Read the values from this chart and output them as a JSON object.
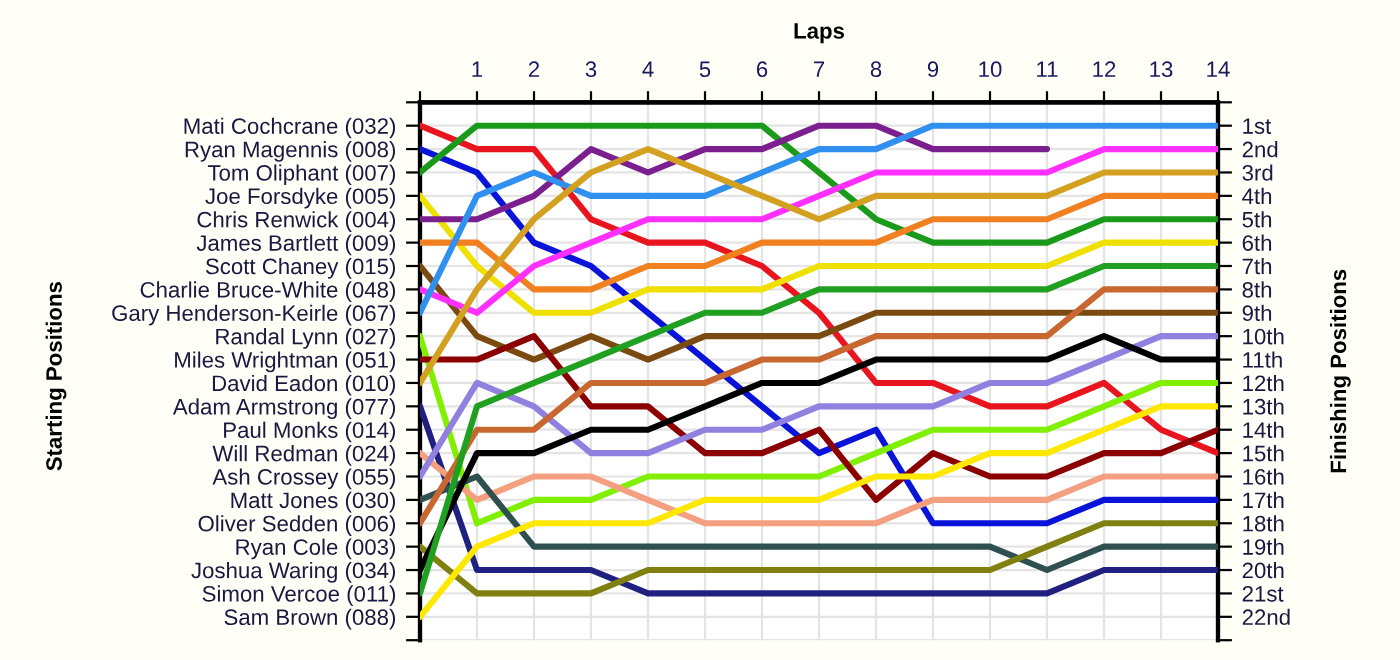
{
  "chart_data": {
    "type": "line",
    "xlabel": "Laps",
    "annotations": [
      "Starting Positions"
    ],
    "y2label": "Finishing Positions",
    "x": [
      0,
      1,
      2,
      3,
      4,
      5,
      6,
      7,
      8,
      9,
      10,
      11,
      12,
      13,
      14
    ],
    "xlim": [
      0,
      14
    ],
    "xticks": [
      {
        "value": 0,
        "label": null
      },
      1,
      2,
      3,
      4,
      5,
      6,
      7,
      8,
      9,
      10,
      11,
      12,
      13,
      14
    ],
    "y_categories": [
      "Mati Cochcrane (032)",
      "Ryan Magennis (008)",
      "Tom Oliphant (007)",
      "Joe Forsdyke (005)",
      "Chris Renwick (004)",
      "James Bartlett (009)",
      "Scott Chaney (015)",
      "Charlie Bruce-White (048)",
      "Gary Henderson-Keirle (067)",
      "Randal Lynn (027)",
      "Miles Wrightman (051)",
      "David Eadon (010)",
      "Adam Armstrong (077)",
      "Paul Monks (014)",
      "Will Redman (024)",
      "Ash Crossey (055)",
      "Matt Jones (030)",
      "Oliver Sedden (006)",
      "Ryan Cole (003)",
      "Joshua Waring (034)",
      "Simon Vercoe (011)",
      "Sam Brown (088)"
    ],
    "y2lim": [
      23,
      0
    ],
    "y2ticks": [
      {
        "value": 0,
        "label": null
      },
      {
        "value": 1,
        "label": "1st"
      },
      {
        "value": 2,
        "label": "2nd"
      },
      {
        "value": 3,
        "label": "3rd"
      },
      {
        "value": 4,
        "label": "4th"
      },
      {
        "value": 5,
        "label": "5th"
      },
      {
        "value": 6,
        "label": "6th"
      },
      {
        "value": 7,
        "label": "7th"
      },
      {
        "value": 8,
        "label": "8th"
      },
      {
        "value": 9,
        "label": "9th"
      },
      {
        "value": 10,
        "label": "10th"
      },
      {
        "value": 11,
        "label": "11th"
      },
      {
        "value": 12,
        "label": "12th"
      },
      {
        "value": 13,
        "label": "13th"
      },
      {
        "value": 14,
        "label": "14th"
      },
      {
        "value": 15,
        "label": "15th"
      },
      {
        "value": 16,
        "label": "16th"
      },
      {
        "value": 17,
        "label": "17th"
      },
      {
        "value": 18,
        "label": "18th"
      },
      {
        "value": 19,
        "label": "19th"
      },
      {
        "value": 20,
        "label": "20th"
      },
      {
        "value": 21,
        "label": "21st"
      },
      {
        "value": 22,
        "label": "22nd"
      },
      {
        "value": 23,
        "label": null
      }
    ],
    "grid": true,
    "line_style": "solid",
    "series": [
      {
        "axis": "y2",
        "color": "#e8141e",
        "values": [
          1,
          2,
          2,
          5,
          6,
          6,
          7,
          9,
          12,
          12,
          13,
          13,
          12,
          14,
          15
        ]
      },
      {
        "axis": "y2",
        "color": "#0a14d8",
        "values": [
          2,
          3,
          6,
          7,
          9,
          11,
          13,
          15,
          14,
          18,
          18,
          18,
          17,
          17,
          17
        ]
      },
      {
        "axis": "y2",
        "color": "#1a9a1a",
        "values": [
          3,
          1,
          1,
          1,
          1,
          1,
          1,
          3,
          5,
          6,
          6,
          6,
          5,
          5,
          5
        ]
      },
      {
        "axis": "y2",
        "color": "#f0e000",
        "values": [
          4,
          7,
          9,
          9,
          8,
          8,
          8,
          7,
          7,
          7,
          7,
          7,
          6,
          6,
          6
        ]
      },
      {
        "axis": "y2",
        "color": "#7b1f8f",
        "values": [
          5,
          5,
          4,
          2,
          3,
          2,
          2,
          1,
          1,
          2,
          2,
          2,
          null,
          null,
          null
        ]
      },
      {
        "axis": "y2",
        "color": "#f08020",
        "values": [
          6,
          6,
          8,
          8,
          7,
          7,
          6,
          6,
          6,
          5,
          5,
          5,
          4,
          4,
          4
        ]
      },
      {
        "axis": "y2",
        "color": "#7a4a10",
        "values": [
          7,
          10,
          11,
          10,
          11,
          10,
          10,
          10,
          9,
          9,
          9,
          9,
          9,
          9,
          9
        ]
      },
      {
        "axis": "y2",
        "color": "#ff30ff",
        "values": [
          8,
          9,
          7,
          6,
          5,
          5,
          5,
          4,
          3,
          3,
          3,
          3,
          2,
          2,
          2
        ]
      },
      {
        "axis": "y2",
        "color": "#3090f0",
        "values": [
          9,
          4,
          3,
          4,
          4,
          4,
          3,
          2,
          2,
          1,
          1,
          1,
          1,
          1,
          1
        ]
      },
      {
        "axis": "y2",
        "color": "#80f000",
        "values": [
          10,
          18,
          17,
          17,
          16,
          16,
          16,
          16,
          15,
          14,
          14,
          14,
          13,
          12,
          12
        ]
      },
      {
        "axis": "y2",
        "color": "#8b0000",
        "values": [
          11,
          11,
          10,
          13,
          13,
          15,
          15,
          14,
          17,
          15,
          16,
          16,
          15,
          15,
          14
        ]
      },
      {
        "axis": "y2",
        "color": "#d4a020",
        "values": [
          12,
          8,
          5,
          3,
          2,
          3,
          4,
          5,
          4,
          4,
          4,
          4,
          3,
          3,
          3
        ]
      },
      {
        "axis": "y2",
        "color": "#202080",
        "values": [
          13,
          20,
          20,
          20,
          21,
          21,
          21,
          21,
          21,
          21,
          21,
          21,
          20,
          20,
          20
        ]
      },
      {
        "axis": "y2",
        "color": "#f4a080",
        "values": [
          15,
          17,
          16,
          16,
          17,
          18,
          18,
          18,
          18,
          17,
          17,
          17,
          16,
          16,
          16
        ]
      },
      {
        "axis": "y2",
        "color": "#9080e0",
        "values": [
          16,
          12,
          13,
          15,
          15,
          14,
          14,
          13,
          13,
          13,
          12,
          12,
          11,
          10,
          10
        ]
      },
      {
        "axis": "y2",
        "color": "#305050",
        "values": [
          17,
          16,
          19,
          19,
          19,
          19,
          19,
          19,
          19,
          19,
          19,
          20,
          19,
          19,
          19
        ]
      },
      {
        "axis": "y2",
        "color": "#c86830",
        "values": [
          18,
          14,
          14,
          12,
          12,
          12,
          11,
          11,
          10,
          10,
          10,
          10,
          8,
          8,
          8
        ]
      },
      {
        "axis": "y2",
        "color": "#808010",
        "values": [
          19,
          21,
          21,
          21,
          20,
          20,
          20,
          20,
          20,
          20,
          20,
          19,
          18,
          18,
          18
        ]
      },
      {
        "axis": "y2",
        "color": "#000000",
        "values": [
          20,
          15,
          15,
          14,
          14,
          13,
          12,
          12,
          11,
          11,
          11,
          11,
          10,
          11,
          11
        ]
      },
      {
        "axis": "y2",
        "color": "#20a020",
        "values": [
          21,
          13,
          12,
          11,
          10,
          9,
          9,
          8,
          8,
          8,
          8,
          8,
          7,
          7,
          7
        ]
      },
      {
        "axis": "y2",
        "color": "#ffe800",
        "values": [
          22,
          19,
          18,
          18,
          18,
          17,
          17,
          17,
          16,
          16,
          15,
          15,
          14,
          13,
          13
        ]
      }
    ]
  }
}
